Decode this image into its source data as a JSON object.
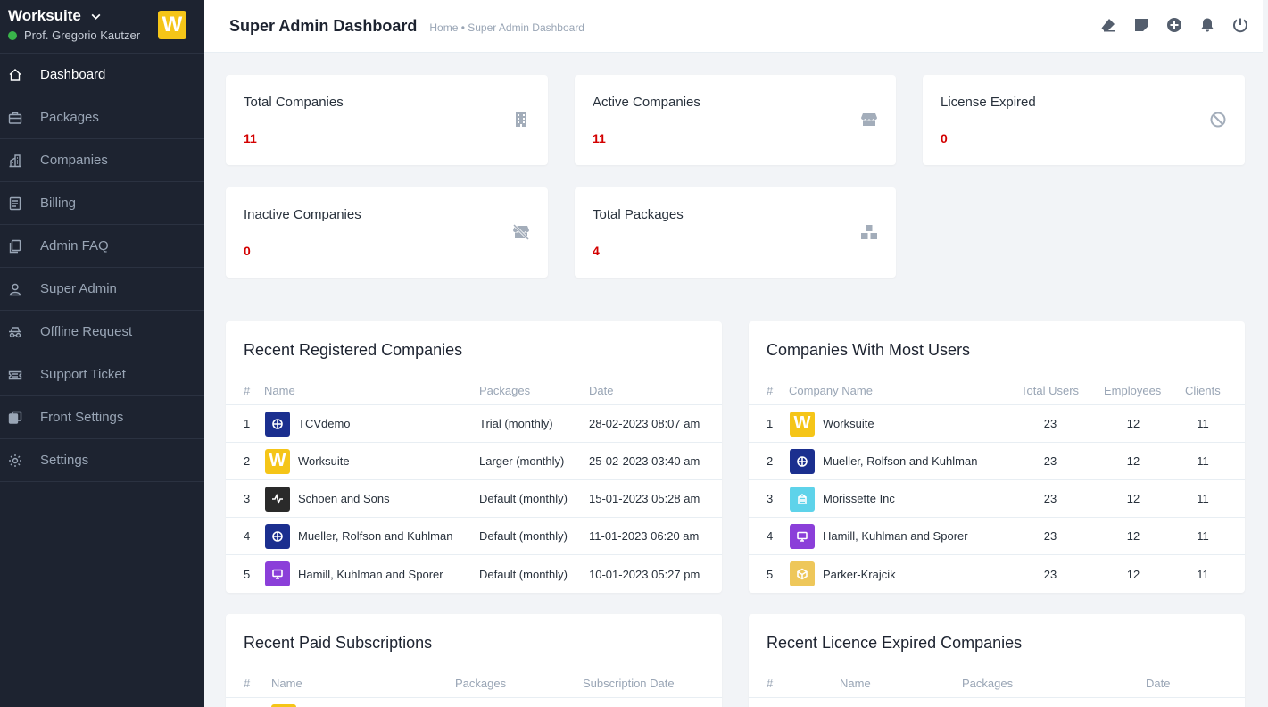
{
  "sidebar": {
    "app_name": "Worksuite",
    "user_name": "Prof. Gregorio Kautzer",
    "logo_letter": "W",
    "items": [
      {
        "label": "Dashboard",
        "icon": "home-icon"
      },
      {
        "label": "Packages",
        "icon": "briefcase-icon"
      },
      {
        "label": "Companies",
        "icon": "building-icon"
      },
      {
        "label": "Billing",
        "icon": "invoice-icon"
      },
      {
        "label": "Admin FAQ",
        "icon": "document-icon"
      },
      {
        "label": "Super Admin",
        "icon": "person-icon"
      },
      {
        "label": "Offline Request",
        "icon": "incognito-icon"
      },
      {
        "label": "Support Ticket",
        "icon": "ticket-icon"
      },
      {
        "label": "Front Settings",
        "icon": "layers-icon"
      },
      {
        "label": "Settings",
        "icon": "gear-icon"
      }
    ]
  },
  "header": {
    "title": "Super Admin Dashboard",
    "breadcrumb": "Home • Super Admin Dashboard"
  },
  "stats": [
    {
      "label": "Total Companies",
      "value": "11",
      "icon": "building-icon"
    },
    {
      "label": "Active Companies",
      "value": "11",
      "icon": "store-icon"
    },
    {
      "label": "License Expired",
      "value": "0",
      "icon": "ban-icon"
    },
    {
      "label": "Inactive Companies",
      "value": "0",
      "icon": "store-slash-icon"
    },
    {
      "label": "Total Packages",
      "value": "4",
      "icon": "boxes-icon"
    }
  ],
  "recent_companies": {
    "title": "Recent Registered Companies",
    "headers": [
      "#",
      "Name",
      "Packages",
      "Date"
    ],
    "rows": [
      {
        "n": "1",
        "name": "TCVdemo",
        "package": "Trial (monthly)",
        "date": "28-02-2023 08:07 am",
        "avatar": "navy"
      },
      {
        "n": "2",
        "name": "Worksuite",
        "package": "Larger (monthly)",
        "date": "25-02-2023 03:40 am",
        "avatar": "worksuite"
      },
      {
        "n": "3",
        "name": "Schoen and Sons",
        "package": "Default (monthly)",
        "date": "15-01-2023 05:28 am",
        "avatar": "dark"
      },
      {
        "n": "4",
        "name": "Mueller, Rolfson and Kuhlman",
        "package": "Default (monthly)",
        "date": "11-01-2023 06:20 am",
        "avatar": "navy"
      },
      {
        "n": "5",
        "name": "Hamill, Kuhlman and Sporer",
        "package": "Default (monthly)",
        "date": "10-01-2023 05:27 pm",
        "avatar": "purple"
      }
    ]
  },
  "most_users": {
    "title": "Companies With Most Users",
    "headers": [
      "#",
      "Company Name",
      "Total Users",
      "Employees",
      "Clients"
    ],
    "rows": [
      {
        "n": "1",
        "name": "Worksuite",
        "users": "23",
        "employees": "12",
        "clients": "11",
        "avatar": "worksuite"
      },
      {
        "n": "2",
        "name": "Mueller, Rolfson and Kuhlman",
        "users": "23",
        "employees": "12",
        "clients": "11",
        "avatar": "navy"
      },
      {
        "n": "3",
        "name": "Morissette Inc",
        "users": "23",
        "employees": "12",
        "clients": "11",
        "avatar": "cyan"
      },
      {
        "n": "4",
        "name": "Hamill, Kuhlman and Sporer",
        "users": "23",
        "employees": "12",
        "clients": "11",
        "avatar": "purple"
      },
      {
        "n": "5",
        "name": "Parker-Krajcik",
        "users": "23",
        "employees": "12",
        "clients": "11",
        "avatar": "yellow"
      }
    ]
  },
  "paid_subscriptions": {
    "title": "Recent Paid Subscriptions",
    "headers": [
      "#",
      "Name",
      "Packages",
      "Subscription Date"
    ]
  },
  "licence_expired": {
    "title": "Recent Licence Expired Companies",
    "headers": [
      "#",
      "Name",
      "Packages",
      "Date"
    ]
  },
  "colors": {
    "sidebar_bg": "#1d2330",
    "accent_red": "#d30000",
    "brand_yellow": "#f5c518",
    "online_green": "#39b54a"
  }
}
